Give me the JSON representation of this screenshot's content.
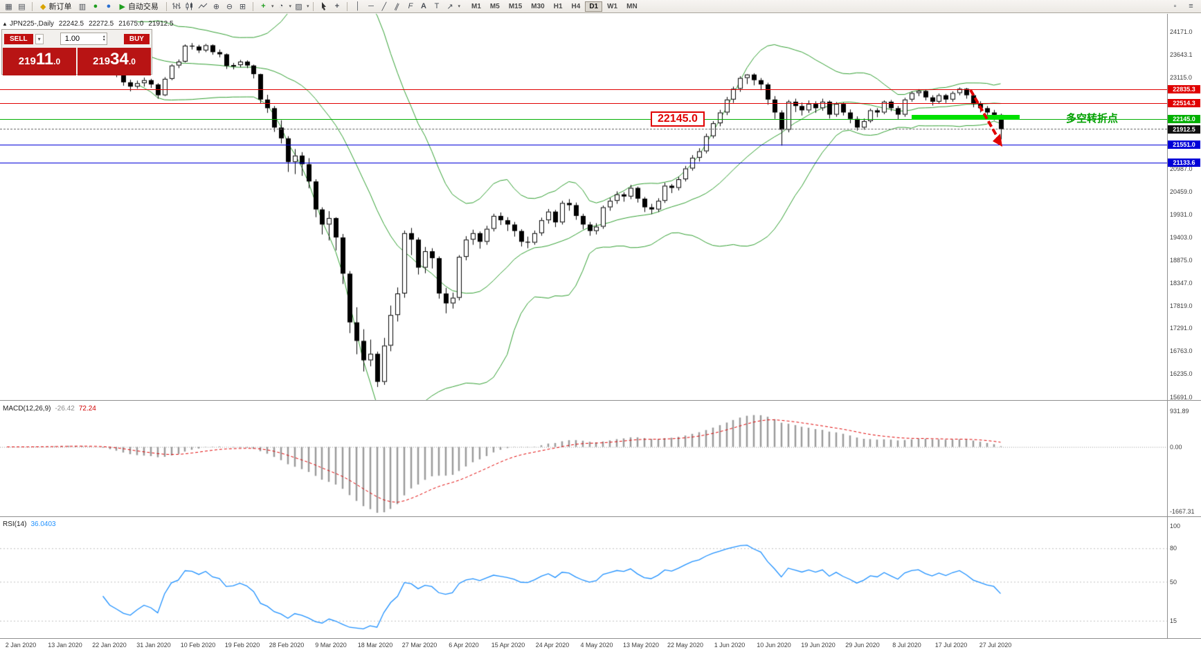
{
  "toolbar": {
    "buttons": {
      "new_order": "新订单",
      "auto_trading": "自动交易"
    },
    "icons": {
      "new_chart": "▦",
      "profiles": "▤",
      "market_watch": "▥",
      "new_order_gem": "◆",
      "support": "●",
      "community": "●",
      "play": "▶",
      "zoom_in": "⊕",
      "zoom_out": "⊖",
      "tile_windows": "⊞",
      "indicators_plus": "+",
      "periods": "◔",
      "templates": "▨",
      "crosshair": "+",
      "vertical_line": "│",
      "horizontal_line": "─",
      "trend_line": "╱",
      "channel": "∥",
      "fibonacci": "F",
      "text": "A",
      "label": "T",
      "arrows": "↗",
      "caret": "▾",
      "dock": "▫",
      "menu": "≡"
    },
    "timeframes": [
      {
        "label": "M1",
        "active": false
      },
      {
        "label": "M5",
        "active": false
      },
      {
        "label": "M15",
        "active": false
      },
      {
        "label": "M30",
        "active": false
      },
      {
        "label": "H1",
        "active": false
      },
      {
        "label": "H4",
        "active": false
      },
      {
        "label": "D1",
        "active": true
      },
      {
        "label": "W1",
        "active": false
      },
      {
        "label": "MN",
        "active": false
      }
    ]
  },
  "symbol_info": {
    "toggle": "▲",
    "name": "JPN225-,Daily",
    "open": "22242.5",
    "high": "22272.5",
    "low": "21675.0",
    "close": "21912.5"
  },
  "trade_panel": {
    "sell_label": "SELL",
    "buy_label": "BUY",
    "volume": "1.00",
    "caret": "▾",
    "spin_up": "▴",
    "spin_down": "▾",
    "sell_price_prefix": "219",
    "sell_price_big": "11",
    "sell_price_frac": ".0",
    "buy_price_prefix": "219",
    "buy_price_big": "34",
    "buy_price_frac": ".0"
  },
  "annotations": {
    "price_note": "22145.0",
    "turning_point": "多空转折点"
  },
  "price_lines": [
    {
      "value": "22835.3",
      "color": "#e00000",
      "current": false
    },
    {
      "value": "22514.3",
      "color": "#e00000",
      "current": false
    },
    {
      "value": "22145.0",
      "color": "#00b000",
      "current": false
    },
    {
      "value": "21912.5",
      "color": "#101010",
      "current": true
    },
    {
      "value": "21551.0",
      "color": "#0000d8",
      "current": false
    },
    {
      "value": "21133.6",
      "color": "#0000d8",
      "current": false
    }
  ],
  "axes": {
    "price_labels": [
      "24171.0",
      "23643.1",
      "23115.0",
      "20987.0",
      "20459.0",
      "19931.0",
      "19403.0",
      "18875.0",
      "18347.0",
      "17819.0",
      "17291.0",
      "16763.0",
      "16235.0",
      "15691.0"
    ],
    "time_labels": [
      "2 Jan 2020",
      "13 Jan 2020",
      "22 Jan 2020",
      "31 Jan 2020",
      "10 Feb 2020",
      "19 Feb 2020",
      "28 Feb 2020",
      "9 Mar 2020",
      "18 Mar 2020",
      "27 Mar 2020",
      "6 Apr 2020",
      "15 Apr 2020",
      "24 Apr 2020",
      "4 May 2020",
      "13 May 2020",
      "22 May 2020",
      "1 Jun 2020",
      "10 Jun 2020",
      "19 Jun 2020",
      "29 Jun 2020",
      "8 Jul 2020",
      "17 Jul 2020",
      "27 Jul 2020"
    ]
  },
  "indicators": {
    "macd": {
      "label": "MACD(12,26,9)",
      "value1": "-26.42",
      "value2": "72.24",
      "scale_labels": [
        "931.89",
        "0.00",
        "-1667.31"
      ]
    },
    "rsi": {
      "label": "RSI(14)",
      "value": "36.0403",
      "scale_labels": [
        "100",
        "80",
        "50",
        "15"
      ]
    }
  },
  "chart_data": {
    "type": "candlestick",
    "symbol": "JPN225-",
    "timeframe": "Daily",
    "ylim": [
      15691.0,
      24171.0
    ],
    "overlays": {
      "bollinger": {
        "period": 20,
        "deviations": 2
      },
      "macd": {
        "fast": 12,
        "slow": 26,
        "signal": 9
      },
      "rsi": {
        "period": 14
      }
    },
    "candles": [
      [
        23780,
        23900,
        23700,
        23850
      ],
      [
        23850,
        23960,
        23800,
        23900
      ],
      [
        23900,
        23940,
        23740,
        23820
      ],
      [
        23820,
        23910,
        23760,
        23870
      ],
      [
        23870,
        23970,
        23820,
        23920
      ],
      [
        23920,
        24010,
        23860,
        23960
      ],
      [
        23960,
        24000,
        23840,
        23900
      ],
      [
        23900,
        23990,
        23850,
        23940
      ],
      [
        23940,
        24030,
        23890,
        23980
      ],
      [
        23980,
        24120,
        23930,
        24000
      ],
      [
        24000,
        24060,
        23900,
        23950
      ],
      [
        23950,
        24000,
        23820,
        23880
      ],
      [
        23880,
        23920,
        23680,
        23750
      ],
      [
        23750,
        23870,
        23700,
        23820
      ],
      [
        23820,
        23850,
        23540,
        23600
      ],
      [
        23600,
        23650,
        23270,
        23350
      ],
      [
        23350,
        23450,
        23120,
        23200
      ],
      [
        23200,
        23280,
        22920,
        23000
      ],
      [
        23000,
        23060,
        22790,
        22900
      ],
      [
        22900,
        23040,
        22850,
        22980
      ],
      [
        22980,
        23110,
        22900,
        23050
      ],
      [
        23050,
        23080,
        22870,
        22950
      ],
      [
        22950,
        22980,
        22620,
        22700
      ],
      [
        22700,
        23120,
        22680,
        23080
      ],
      [
        23080,
        23420,
        23050,
        23390
      ],
      [
        23390,
        23530,
        23330,
        23480
      ],
      [
        23480,
        23880,
        23460,
        23850
      ],
      [
        23850,
        23910,
        23760,
        23830
      ],
      [
        23830,
        23870,
        23680,
        23740
      ],
      [
        23740,
        23890,
        23700,
        23860
      ],
      [
        23860,
        23880,
        23640,
        23700
      ],
      [
        23700,
        23760,
        23580,
        23650
      ],
      [
        23650,
        23670,
        23310,
        23380
      ],
      [
        23380,
        23450,
        23300,
        23400
      ],
      [
        23400,
        23520,
        23350,
        23480
      ],
      [
        23480,
        23510,
        23330,
        23390
      ],
      [
        23390,
        23410,
        23090,
        23190
      ],
      [
        23190,
        23200,
        22510,
        22600
      ],
      [
        22600,
        22710,
        22290,
        22400
      ],
      [
        22400,
        22450,
        21850,
        21950
      ],
      [
        21950,
        22120,
        21580,
        21700
      ],
      [
        21700,
        21750,
        20920,
        21150
      ],
      [
        21150,
        21450,
        20870,
        21300
      ],
      [
        21300,
        21380,
        20830,
        21100
      ],
      [
        21100,
        21240,
        20540,
        20700
      ],
      [
        20700,
        20750,
        19870,
        20050
      ],
      [
        20050,
        20100,
        19470,
        19700
      ],
      [
        19700,
        20010,
        19330,
        19850
      ],
      [
        19850,
        19870,
        19100,
        19400
      ],
      [
        19400,
        19480,
        18320,
        18560
      ],
      [
        18560,
        18620,
        17180,
        17430
      ],
      [
        17430,
        17780,
        16690,
        17000
      ],
      [
        17000,
        17270,
        16290,
        16550
      ],
      [
        16550,
        17030,
        16410,
        16700
      ],
      [
        16700,
        16750,
        15930,
        16050
      ],
      [
        16050,
        17070,
        15980,
        16890
      ],
      [
        16890,
        17820,
        16760,
        17600
      ],
      [
        17600,
        18240,
        17450,
        18100
      ],
      [
        18100,
        19560,
        18000,
        19500
      ],
      [
        19500,
        19620,
        18990,
        19350
      ],
      [
        19350,
        19400,
        18540,
        18700
      ],
      [
        18700,
        19180,
        18570,
        19080
      ],
      [
        19080,
        19150,
        18680,
        18920
      ],
      [
        18920,
        18960,
        17980,
        18100
      ],
      [
        18100,
        18230,
        17640,
        17870
      ],
      [
        17870,
        18120,
        17750,
        18000
      ],
      [
        18000,
        18990,
        17940,
        18950
      ],
      [
        18950,
        19430,
        18870,
        19350
      ],
      [
        19350,
        19580,
        19230,
        19500
      ],
      [
        19500,
        19540,
        19140,
        19300
      ],
      [
        19300,
        19670,
        19230,
        19600
      ],
      [
        19600,
        19950,
        19540,
        19900
      ],
      [
        19900,
        19980,
        19690,
        19800
      ],
      [
        19800,
        19870,
        19550,
        19700
      ],
      [
        19700,
        19760,
        19420,
        19550
      ],
      [
        19550,
        19590,
        19190,
        19300
      ],
      [
        19300,
        19420,
        19150,
        19280
      ],
      [
        19280,
        19560,
        19230,
        19500
      ],
      [
        19500,
        19860,
        19440,
        19800
      ],
      [
        19800,
        20060,
        19720,
        20000
      ],
      [
        20000,
        20040,
        19640,
        19750
      ],
      [
        19750,
        20250,
        19700,
        20200
      ],
      [
        20200,
        20290,
        20020,
        20150
      ],
      [
        20150,
        20210,
        19810,
        19900
      ],
      [
        19900,
        19950,
        19590,
        19700
      ],
      [
        19700,
        19760,
        19440,
        19550
      ],
      [
        19550,
        19730,
        19470,
        19650
      ],
      [
        19650,
        20140,
        19600,
        20100
      ],
      [
        20100,
        20320,
        20020,
        20250
      ],
      [
        20250,
        20470,
        20180,
        20400
      ],
      [
        20400,
        20450,
        20230,
        20350
      ],
      [
        20350,
        20620,
        20290,
        20550
      ],
      [
        20550,
        20580,
        20210,
        20300
      ],
      [
        20300,
        20340,
        19990,
        20100
      ],
      [
        20100,
        20180,
        19940,
        20050
      ],
      [
        20050,
        20310,
        19990,
        20250
      ],
      [
        20250,
        20670,
        20200,
        20600
      ],
      [
        20600,
        20640,
        20430,
        20550
      ],
      [
        20550,
        20810,
        20490,
        20750
      ],
      [
        20750,
        21060,
        20700,
        21000
      ],
      [
        21000,
        21310,
        20950,
        21250
      ],
      [
        21250,
        21470,
        21160,
        21400
      ],
      [
        21400,
        21810,
        21350,
        21750
      ],
      [
        21750,
        22100,
        21700,
        22050
      ],
      [
        22050,
        22360,
        21980,
        22300
      ],
      [
        22300,
        22660,
        22240,
        22600
      ],
      [
        22600,
        22900,
        22520,
        22850
      ],
      [
        22850,
        23140,
        22780,
        23100
      ],
      [
        23100,
        23190,
        22960,
        23180
      ],
      [
        23180,
        23210,
        22930,
        23050
      ],
      [
        23050,
        23100,
        22820,
        22950
      ],
      [
        22950,
        22990,
        22480,
        22600
      ],
      [
        22600,
        22680,
        22150,
        22300
      ],
      [
        22300,
        22350,
        21530,
        21900
      ],
      [
        21900,
        22590,
        21840,
        22550
      ],
      [
        22550,
        22620,
        22310,
        22450
      ],
      [
        22450,
        22530,
        22230,
        22350
      ],
      [
        22350,
        22580,
        22290,
        22500
      ],
      [
        22500,
        22560,
        22290,
        22400
      ],
      [
        22400,
        22620,
        22340,
        22550
      ],
      [
        22550,
        22580,
        22160,
        22250
      ],
      [
        22250,
        22540,
        22200,
        22500
      ],
      [
        22500,
        22530,
        22230,
        22300
      ],
      [
        22300,
        22370,
        22050,
        22150
      ],
      [
        22150,
        22210,
        21880,
        21950
      ],
      [
        21950,
        22160,
        21900,
        22100
      ],
      [
        22100,
        22390,
        22060,
        22350
      ],
      [
        22350,
        22400,
        22190,
        22300
      ],
      [
        22300,
        22580,
        22260,
        22550
      ],
      [
        22550,
        22590,
        22330,
        22400
      ],
      [
        22400,
        22450,
        22140,
        22250
      ],
      [
        22250,
        22640,
        22200,
        22600
      ],
      [
        22600,
        22790,
        22550,
        22750
      ],
      [
        22750,
        22840,
        22680,
        22800
      ],
      [
        22800,
        22830,
        22580,
        22650
      ],
      [
        22650,
        22700,
        22460,
        22550
      ],
      [
        22550,
        22740,
        22500,
        22700
      ],
      [
        22700,
        22730,
        22520,
        22600
      ],
      [
        22600,
        22790,
        22550,
        22750
      ],
      [
        22750,
        22880,
        22700,
        22850
      ],
      [
        22850,
        22870,
        22620,
        22700
      ],
      [
        22700,
        22750,
        22420,
        22500
      ],
      [
        22500,
        22560,
        22300,
        22400
      ],
      [
        22400,
        22450,
        22180,
        22300
      ],
      [
        22300,
        22360,
        22120,
        22242.5
      ],
      [
        22242.5,
        22272.5,
        21675,
        21912.5
      ]
    ]
  }
}
